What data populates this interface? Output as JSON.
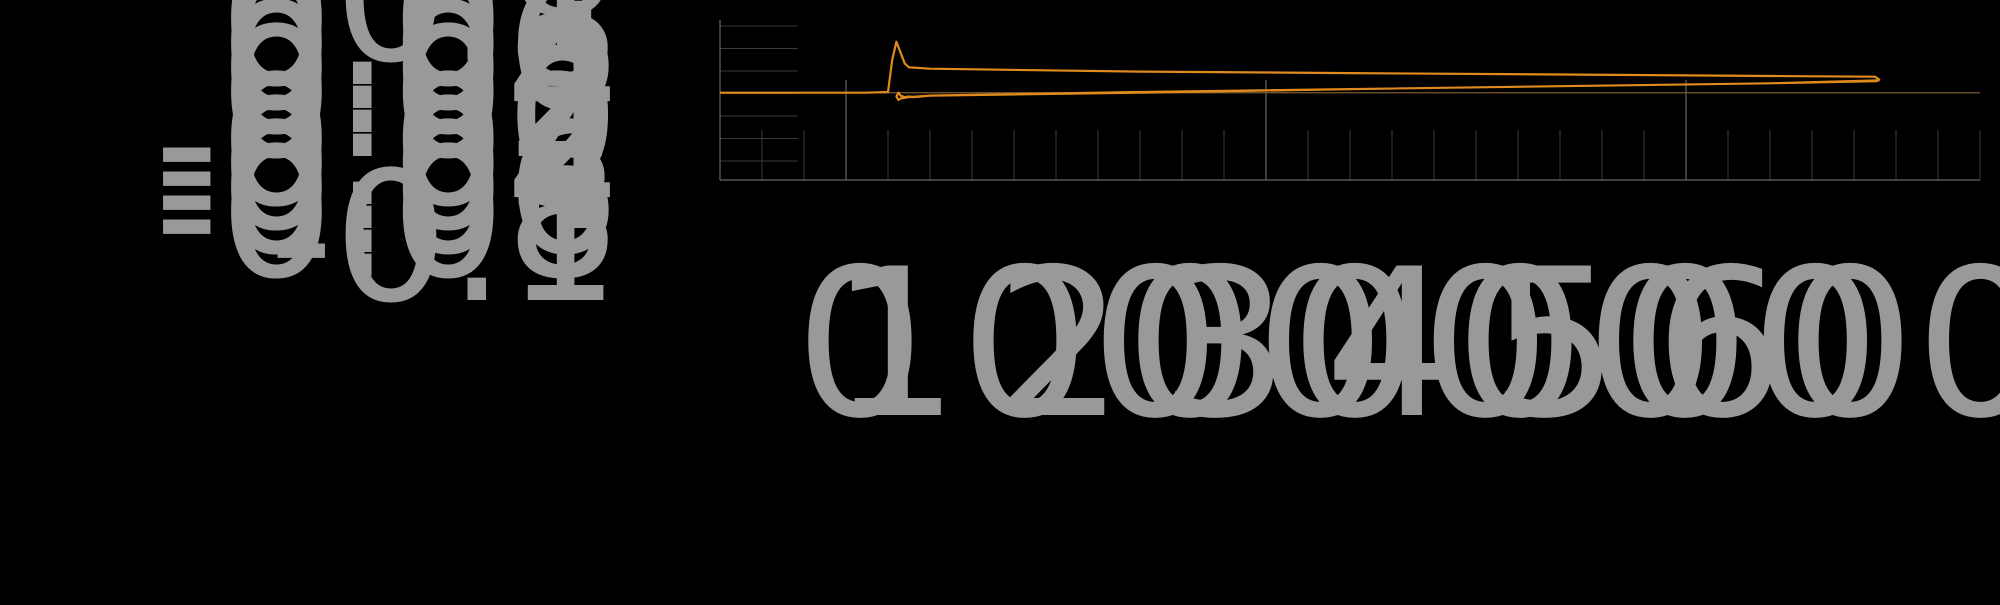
{
  "chart_data": {
    "type": "line",
    "title": "",
    "xlabel": "",
    "ylabel": "",
    "xlim": [
      0,
      600
    ],
    "ylim": [
      -0.12,
      0.1
    ],
    "grid": true,
    "legend": "none",
    "x_ticks": [
      "0",
      "100",
      "200",
      "300",
      "400",
      "500",
      "600"
    ],
    "y_ticks": [
      "-0.1",
      "-0.08",
      "-0.06",
      "-0.04",
      "-0.02",
      "0",
      "0.02",
      "0.04",
      "0.06",
      "0.08",
      "0.1"
    ],
    "colors": {
      "background": "#000000",
      "series": "#e08a1e",
      "tick_label": "#999999",
      "grid_minor": "#3a3a3a",
      "grid_major": "#777777",
      "zero_line": "#7a5a30"
    },
    "series": [
      {
        "name": "",
        "x": [
          0,
          20,
          40,
          60,
          70,
          80,
          82,
          84,
          86,
          88,
          90,
          95,
          100,
          150,
          200,
          300,
          400,
          500,
          550,
          552,
          551,
          500,
          400,
          300,
          200,
          100,
          90,
          86,
          85,
          84,
          85,
          86,
          88,
          90,
          92,
          100,
          200,
          300,
          400,
          500,
          552
        ],
        "y": [
          0.0,
          0.0,
          0.0,
          0.0,
          0.0,
          0.001,
          0.045,
          0.07,
          0.055,
          0.04,
          0.035,
          0.034,
          0.033,
          0.031,
          0.029,
          0.027,
          0.025,
          0.023,
          0.022,
          0.018,
          0.016,
          0.013,
          0.009,
          0.005,
          0.001,
          -0.004,
          -0.006,
          -0.008,
          -0.01,
          -0.005,
          0.0,
          -0.004,
          -0.006,
          -0.005,
          -0.006,
          -0.004,
          -0.0,
          0.005,
          0.009,
          0.013,
          0.017
        ]
      }
    ]
  }
}
